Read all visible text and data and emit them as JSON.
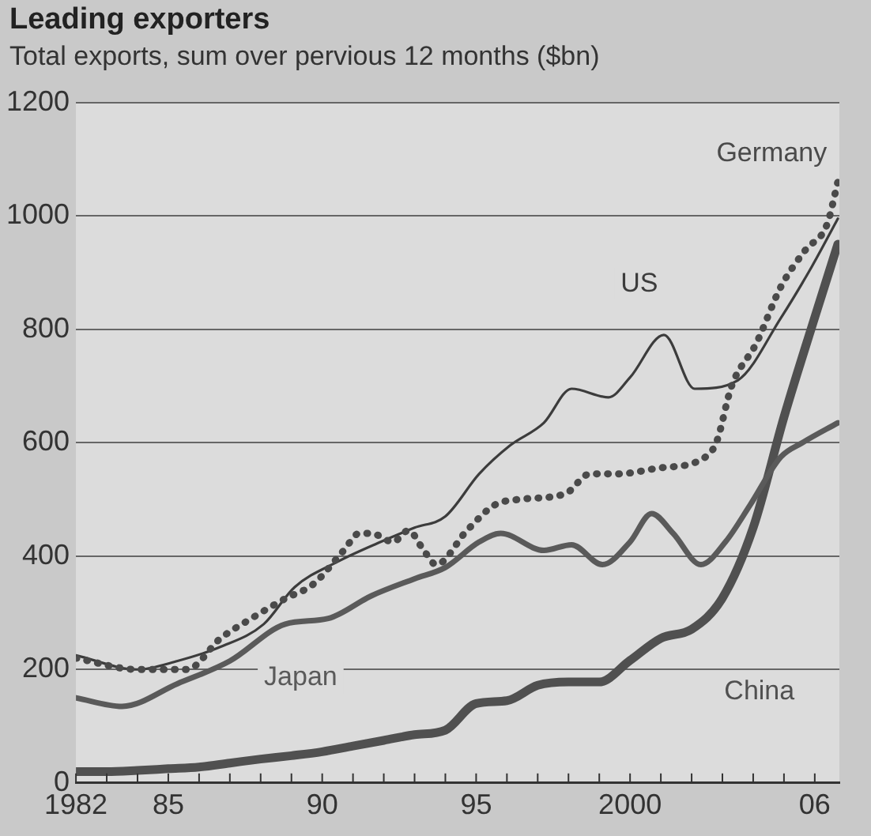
{
  "chart_data": {
    "type": "line",
    "title": "Leading exporters",
    "subtitle": "Total exports, sum over pervious 12 months ($bn)",
    "xlim": [
      1982,
      2006.8
    ],
    "xticks": [
      {
        "value": 1982,
        "label": "1982"
      },
      {
        "value": 1983,
        "label": null
      },
      {
        "value": 1984,
        "label": null
      },
      {
        "value": 1985,
        "label": "85"
      },
      {
        "value": 1986,
        "label": null
      },
      {
        "value": 1987,
        "label": null
      },
      {
        "value": 1988,
        "label": null
      },
      {
        "value": 1989,
        "label": null
      },
      {
        "value": 1990,
        "label": "90"
      },
      {
        "value": 1991,
        "label": null
      },
      {
        "value": 1992,
        "label": null
      },
      {
        "value": 1993,
        "label": null
      },
      {
        "value": 1994,
        "label": null
      },
      {
        "value": 1995,
        "label": "95"
      },
      {
        "value": 1996,
        "label": null
      },
      {
        "value": 1997,
        "label": null
      },
      {
        "value": 1998,
        "label": null
      },
      {
        "value": 1999,
        "label": null
      },
      {
        "value": 2000,
        "label": "2000"
      },
      {
        "value": 2001,
        "label": null
      },
      {
        "value": 2002,
        "label": null
      },
      {
        "value": 2003,
        "label": null
      },
      {
        "value": 2004,
        "label": null
      },
      {
        "value": 2005,
        "label": null
      },
      {
        "value": 2006,
        "label": "06"
      }
    ],
    "ylim": [
      0,
      1200
    ],
    "yticks": [
      0,
      200,
      400,
      600,
      800,
      1000,
      1200
    ],
    "grid": "y",
    "legend": false,
    "marker": "none",
    "series": [
      {
        "name": "Germany",
        "color": "#4a4a4a",
        "line_style": "dotted",
        "x": [
          1982,
          1984,
          1985.6,
          1986.7,
          1987.7,
          1988.8,
          1989.7,
          1990.7,
          1991.2,
          1991.6,
          1992.3,
          1992.8,
          1993.3,
          1993.7,
          1994.7,
          1995.6,
          1996.4,
          1997.9,
          1998.7,
          1999.6,
          2000.9,
          2002.3,
          2002.8,
          2003.3,
          2004.1,
          2004.9,
          2005.7,
          2006.4,
          2006.75
        ],
        "values": [
          220,
          200,
          200,
          255,
          290,
          325,
          350,
          410,
          440,
          440,
          425,
          445,
          410,
          385,
          445,
          490,
          500,
          510,
          545,
          545,
          555,
          570,
          600,
          700,
          775,
          875,
          940,
          985,
          1060
        ]
      },
      {
        "name": "US",
        "color": "#3c3c3c",
        "line_style": "solid",
        "x": [
          1982,
          1984,
          1985.3,
          1986.7,
          1988.1,
          1989.1,
          1990.5,
          1991.9,
          1993,
          1994,
          1995.1,
          1996.1,
          1997.2,
          1998.1,
          1999.3,
          2000,
          2001.1,
          2002.1,
          2003.5,
          2004.9,
          2005.9,
          2006.75
        ],
        "values": [
          225,
          200,
          215,
          240,
          280,
          345,
          390,
          425,
          450,
          470,
          545,
          595,
          635,
          695,
          680,
          715,
          790,
          695,
          710,
          820,
          910,
          995
        ]
      },
      {
        "name": "Japan",
        "color": "#5a5a5a",
        "line_style": "solid",
        "x": [
          1982,
          1983.5,
          1985.3,
          1987,
          1988.8,
          1990.2,
          1991.6,
          1993,
          1994,
          1995.1,
          1995.8,
          1997.2,
          1998.1,
          1999.1,
          2000,
          2000.7,
          2001.4,
          2002.3,
          2003.1,
          2003.9,
          2004.9,
          2005.6,
          2006.75
        ],
        "values": [
          150,
          135,
          175,
          215,
          280,
          290,
          330,
          360,
          380,
          425,
          440,
          410,
          420,
          385,
          425,
          475,
          440,
          385,
          425,
          490,
          575,
          600,
          635
        ]
      },
      {
        "name": "China",
        "color": "#505050",
        "line_style": "solid",
        "x": [
          1982,
          1983,
          1984,
          1985,
          1986,
          1987,
          1988,
          1989,
          1990,
          1991,
          1992,
          1993,
          1994,
          1995,
          1996,
          1997,
          1998,
          1999,
          2000,
          2001,
          2002,
          2003,
          2004,
          2005,
          2006,
          2006.75
        ],
        "values": [
          20,
          20,
          22,
          25,
          28,
          35,
          42,
          48,
          55,
          65,
          75,
          85,
          93,
          140,
          145,
          172,
          178,
          178,
          216,
          255,
          271,
          326,
          450,
          645,
          821,
          950
        ]
      }
    ]
  }
}
